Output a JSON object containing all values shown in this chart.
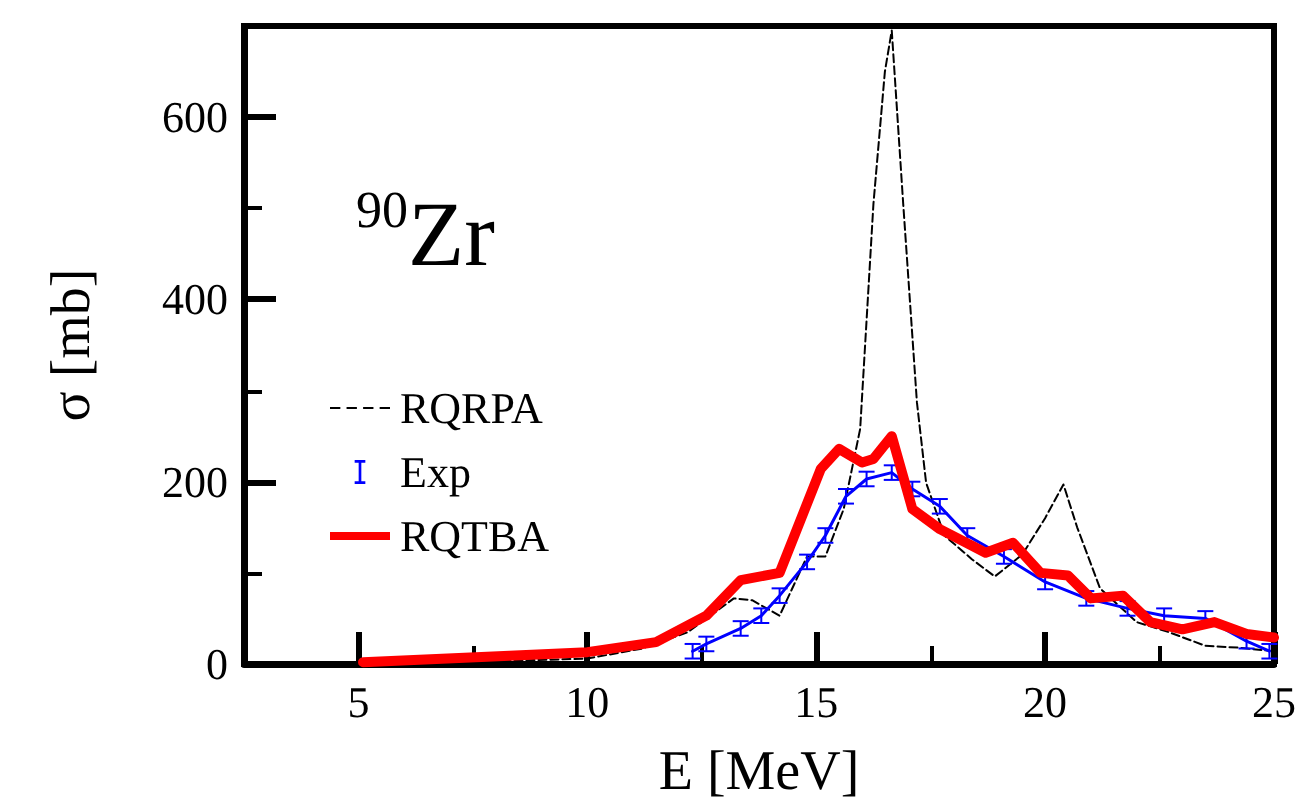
{
  "chart_data": {
    "type": "line",
    "xlabel": "E [MeV]",
    "ylabel": "σ [mb]",
    "xlim": [
      2.5,
      25
    ],
    "xticks": [
      5,
      10,
      15,
      20,
      25
    ],
    "ylim": [
      0,
      700
    ],
    "yticks": [
      0,
      200,
      400,
      600
    ],
    "grid": false,
    "legend": "left",
    "marker": "none",
    "annotations": [
      "$^{90}$Zr"
    ],
    "series": [
      {
        "name": "RQRPA",
        "color": "#000000",
        "line_style": "dashed",
        "x": [
          5,
          8,
          10,
          11.2,
          12.2,
          13.2,
          13.6,
          14.2,
          14.8,
          15.2,
          15.6,
          15.96,
          16.25,
          16.5,
          16.65,
          16.9,
          17.2,
          17.4,
          17.8,
          18.4,
          18.9,
          19.5,
          20.0,
          20.4,
          20.7,
          21.2,
          22.0,
          22.7,
          23.5,
          24.2,
          25
        ],
        "values": [
          1,
          3,
          6,
          17,
          35,
          72,
          70,
          53,
          118,
          118,
          170,
          258,
          505,
          650,
          695,
          505,
          287,
          199,
          141,
          115,
          96,
          120,
          160,
          197,
          150,
          83,
          46,
          35,
          20,
          18,
          14
        ]
      },
      {
        "name": "Exp",
        "color": "#0000ff",
        "line_style": "solid",
        "x": [
          12.3,
          12.6,
          13.35,
          13.8,
          14.2,
          14.8,
          15.2,
          15.65,
          16.1,
          16.65,
          17.1,
          17.7,
          18.3,
          19.1,
          20.0,
          20.9,
          21.8,
          22.6,
          23.5,
          24.4,
          24.9
        ],
        "values": [
          14,
          22,
          39,
          53,
          75,
          112,
          141,
          184,
          203,
          210,
          192,
          173,
          141,
          118,
          90,
          72,
          61,
          53,
          50,
          25,
          14
        ],
        "errors": [
          8,
          8,
          8,
          8,
          8,
          8,
          8,
          8,
          8,
          8,
          8,
          8,
          8,
          8,
          8,
          8,
          8,
          8,
          8,
          8,
          8
        ]
      },
      {
        "name": "RQTBA",
        "color": "#ff0000",
        "line_style": "solid",
        "x": [
          5.1,
          8.3,
          10,
          11.5,
          12.6,
          13.35,
          14.2,
          15.1,
          15.5,
          16.0,
          16.25,
          16.65,
          17.1,
          17.7,
          18.7,
          19.3,
          19.9,
          20.5,
          21.0,
          21.7,
          22.3,
          23.0,
          23.7,
          24.4,
          25
        ],
        "values": [
          2,
          9,
          13,
          24,
          53,
          92,
          100,
          214,
          236,
          221,
          225,
          250,
          170,
          148,
          122,
          133,
          100,
          97,
          72,
          75,
          46,
          38,
          46,
          33,
          29
        ]
      }
    ]
  }
}
